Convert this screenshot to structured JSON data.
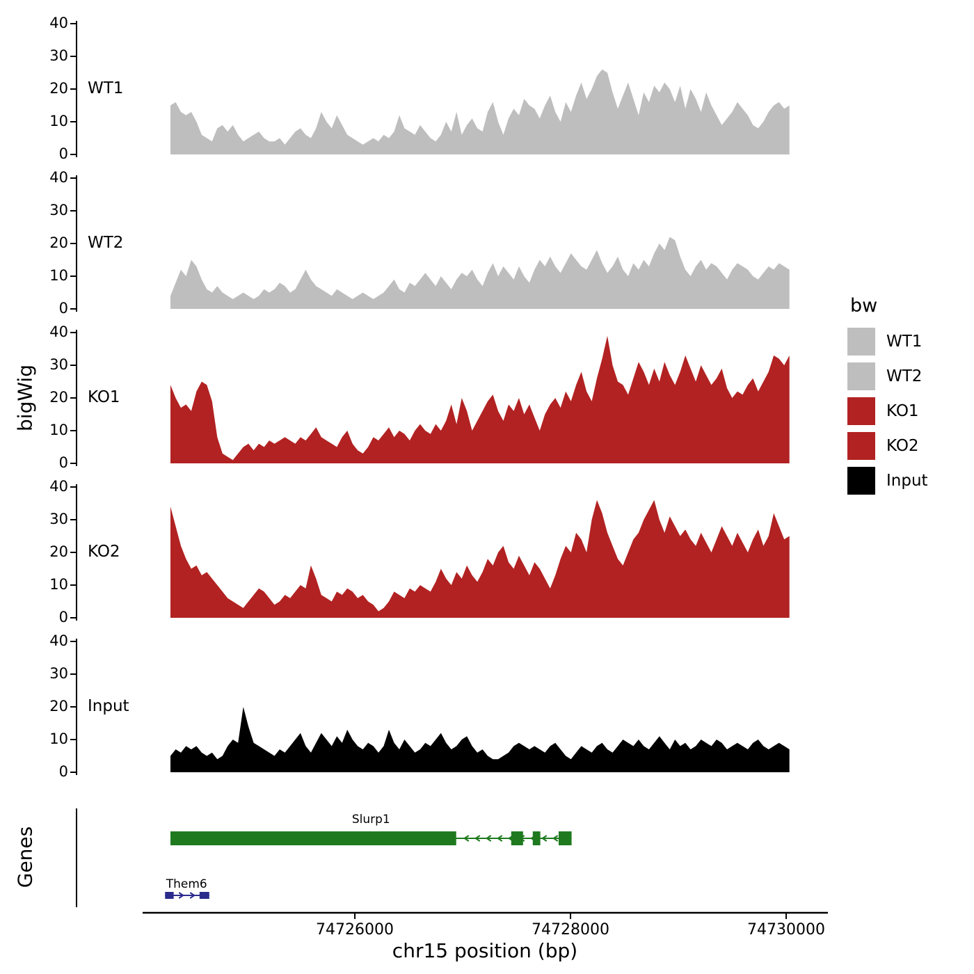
{
  "figure": {
    "ylabel": "bigWig",
    "xlabel": "chr15 position (bp)",
    "genes_label": "Genes",
    "background": "#FFFFFF",
    "axis_color": "#000000"
  },
  "legend": {
    "title": "bw",
    "entries": [
      {
        "label": "WT1",
        "color": "#BEBEBE"
      },
      {
        "label": "WT2",
        "color": "#BEBEBE"
      },
      {
        "label": "KO1",
        "color": "#B22222"
      },
      {
        "label": "KO2",
        "color": "#B22222"
      },
      {
        "label": "Input",
        "color": "#000000"
      }
    ]
  },
  "chart_data": {
    "type": "area",
    "title": "",
    "xlabel": "chr15 position (bp)",
    "ylabel": "bigWig",
    "x_domain": [
      74723419,
      74730387
    ],
    "data_start": 74724290,
    "data_end": 74730030,
    "x_ticks": [
      74726000,
      74728000,
      74730000
    ],
    "ylim": [
      0,
      40
    ],
    "y_ticks": [
      0,
      10,
      20,
      30,
      40
    ],
    "series": [
      {
        "name": "WT1",
        "color": "#BEBEBE",
        "values": [
          15,
          16,
          13,
          12,
          13,
          10,
          6,
          5,
          4,
          8,
          9,
          7,
          9,
          6,
          4,
          5,
          6,
          7,
          5,
          4,
          4,
          5,
          3,
          5,
          7,
          8,
          6,
          5,
          8,
          13,
          10,
          8,
          12,
          9,
          6,
          5,
          4,
          3,
          4,
          5,
          4,
          6,
          5,
          7,
          12,
          8,
          7,
          6,
          9,
          7,
          5,
          4,
          6,
          10,
          7,
          13,
          6,
          9,
          11,
          8,
          7,
          13,
          16,
          10,
          6,
          11,
          14,
          12,
          17,
          15,
          14,
          11,
          15,
          18,
          13,
          10,
          16,
          13,
          18,
          22,
          17,
          20,
          24,
          26,
          25,
          19,
          14,
          18,
          22,
          17,
          12,
          19,
          16,
          21,
          19,
          22,
          20,
          16,
          21,
          14,
          20,
          17,
          13,
          19,
          15,
          12,
          9,
          11,
          13,
          16,
          14,
          12,
          9,
          8,
          10,
          13,
          15,
          16,
          14,
          15
        ]
      },
      {
        "name": "WT2",
        "color": "#BEBEBE",
        "values": [
          4,
          8,
          12,
          10,
          15,
          13,
          9,
          6,
          5,
          7,
          5,
          4,
          3,
          4,
          5,
          4,
          3,
          4,
          6,
          5,
          6,
          8,
          7,
          5,
          6,
          9,
          12,
          9,
          7,
          6,
          5,
          4,
          6,
          5,
          4,
          3,
          4,
          5,
          4,
          3,
          4,
          5,
          7,
          9,
          6,
          5,
          8,
          7,
          9,
          11,
          9,
          7,
          10,
          8,
          6,
          9,
          11,
          10,
          12,
          9,
          7,
          11,
          14,
          10,
          13,
          11,
          9,
          13,
          10,
          8,
          12,
          15,
          13,
          16,
          13,
          11,
          14,
          17,
          15,
          13,
          12,
          15,
          18,
          14,
          11,
          13,
          16,
          12,
          10,
          14,
          12,
          15,
          13,
          17,
          20,
          18,
          22,
          21,
          16,
          12,
          10,
          13,
          15,
          12,
          14,
          13,
          11,
          9,
          12,
          14,
          13,
          12,
          10,
          9,
          11,
          13,
          12,
          14,
          13,
          12
        ]
      },
      {
        "name": "KO1",
        "color": "#B22222",
        "values": [
          24,
          20,
          17,
          18,
          16,
          22,
          25,
          24,
          19,
          8,
          3,
          2,
          1,
          3,
          5,
          6,
          4,
          6,
          5,
          7,
          6,
          7,
          8,
          7,
          6,
          8,
          7,
          9,
          11,
          8,
          7,
          6,
          5,
          8,
          10,
          6,
          4,
          3,
          5,
          8,
          7,
          9,
          11,
          8,
          10,
          9,
          7,
          10,
          12,
          10,
          9,
          12,
          10,
          13,
          18,
          12,
          20,
          16,
          10,
          13,
          16,
          19,
          21,
          16,
          13,
          18,
          16,
          20,
          15,
          18,
          14,
          10,
          15,
          18,
          20,
          17,
          22,
          19,
          24,
          28,
          22,
          19,
          26,
          32,
          39,
          30,
          25,
          24,
          21,
          26,
          31,
          28,
          24,
          29,
          25,
          31,
          27,
          24,
          28,
          33,
          29,
          25,
          30,
          27,
          24,
          26,
          29,
          23,
          20,
          22,
          21,
          24,
          26,
          22,
          25,
          28,
          33,
          32,
          30,
          33
        ]
      },
      {
        "name": "KO2",
        "color": "#B22222",
        "values": [
          34,
          28,
          22,
          18,
          15,
          16,
          13,
          14,
          12,
          10,
          8,
          6,
          5,
          4,
          3,
          5,
          7,
          9,
          8,
          6,
          4,
          5,
          7,
          6,
          8,
          10,
          9,
          16,
          12,
          7,
          6,
          5,
          8,
          7,
          9,
          8,
          6,
          7,
          5,
          4,
          2,
          3,
          5,
          8,
          7,
          6,
          9,
          8,
          10,
          9,
          8,
          11,
          15,
          12,
          10,
          14,
          12,
          16,
          13,
          11,
          14,
          18,
          16,
          20,
          22,
          17,
          15,
          19,
          16,
          13,
          17,
          15,
          12,
          9,
          13,
          18,
          22,
          20,
          26,
          24,
          20,
          30,
          36,
          32,
          26,
          22,
          18,
          16,
          20,
          24,
          26,
          30,
          33,
          36,
          30,
          26,
          31,
          28,
          25,
          27,
          24,
          22,
          26,
          23,
          20,
          24,
          28,
          25,
          22,
          26,
          23,
          20,
          24,
          27,
          22,
          25,
          32,
          28,
          24,
          25
        ]
      },
      {
        "name": "Input",
        "color": "#000000",
        "values": [
          5,
          7,
          6,
          8,
          7,
          8,
          6,
          5,
          6,
          4,
          5,
          8,
          10,
          9,
          20,
          14,
          9,
          8,
          7,
          6,
          5,
          7,
          6,
          8,
          10,
          12,
          8,
          6,
          9,
          12,
          10,
          8,
          11,
          9,
          13,
          10,
          8,
          7,
          9,
          8,
          6,
          8,
          13,
          9,
          7,
          10,
          8,
          6,
          7,
          9,
          8,
          10,
          12,
          9,
          7,
          8,
          10,
          11,
          8,
          6,
          7,
          5,
          4,
          4,
          5,
          6,
          8,
          9,
          8,
          7,
          8,
          7,
          6,
          8,
          9,
          7,
          5,
          4,
          6,
          8,
          7,
          6,
          8,
          9,
          7,
          6,
          8,
          10,
          9,
          8,
          10,
          8,
          7,
          9,
          11,
          9,
          7,
          10,
          8,
          9,
          7,
          8,
          10,
          9,
          8,
          10,
          9,
          7,
          8,
          9,
          8,
          7,
          9,
          10,
          8,
          7,
          8,
          9,
          8,
          7
        ]
      }
    ],
    "genes": [
      {
        "name": "Slurp1",
        "color": "#1f7a1f",
        "strand": "-",
        "lane": 0,
        "start": 74724290,
        "end": 74728010,
        "thick": [
          74724290,
          74726940
        ],
        "exons": [
          [
            74727450,
            74727560
          ],
          [
            74727650,
            74727720
          ],
          [
            74727890,
            74728010
          ]
        ],
        "label_bp": 74726150
      },
      {
        "name": "Them6",
        "color": "#2b2b8c",
        "strand": "+",
        "lane": 1,
        "start": 74724240,
        "end": 74724650,
        "thick": [
          74724240,
          74724320
        ],
        "exons": [
          [
            74724560,
            74724650
          ]
        ],
        "label_bp": 74724440
      }
    ]
  }
}
